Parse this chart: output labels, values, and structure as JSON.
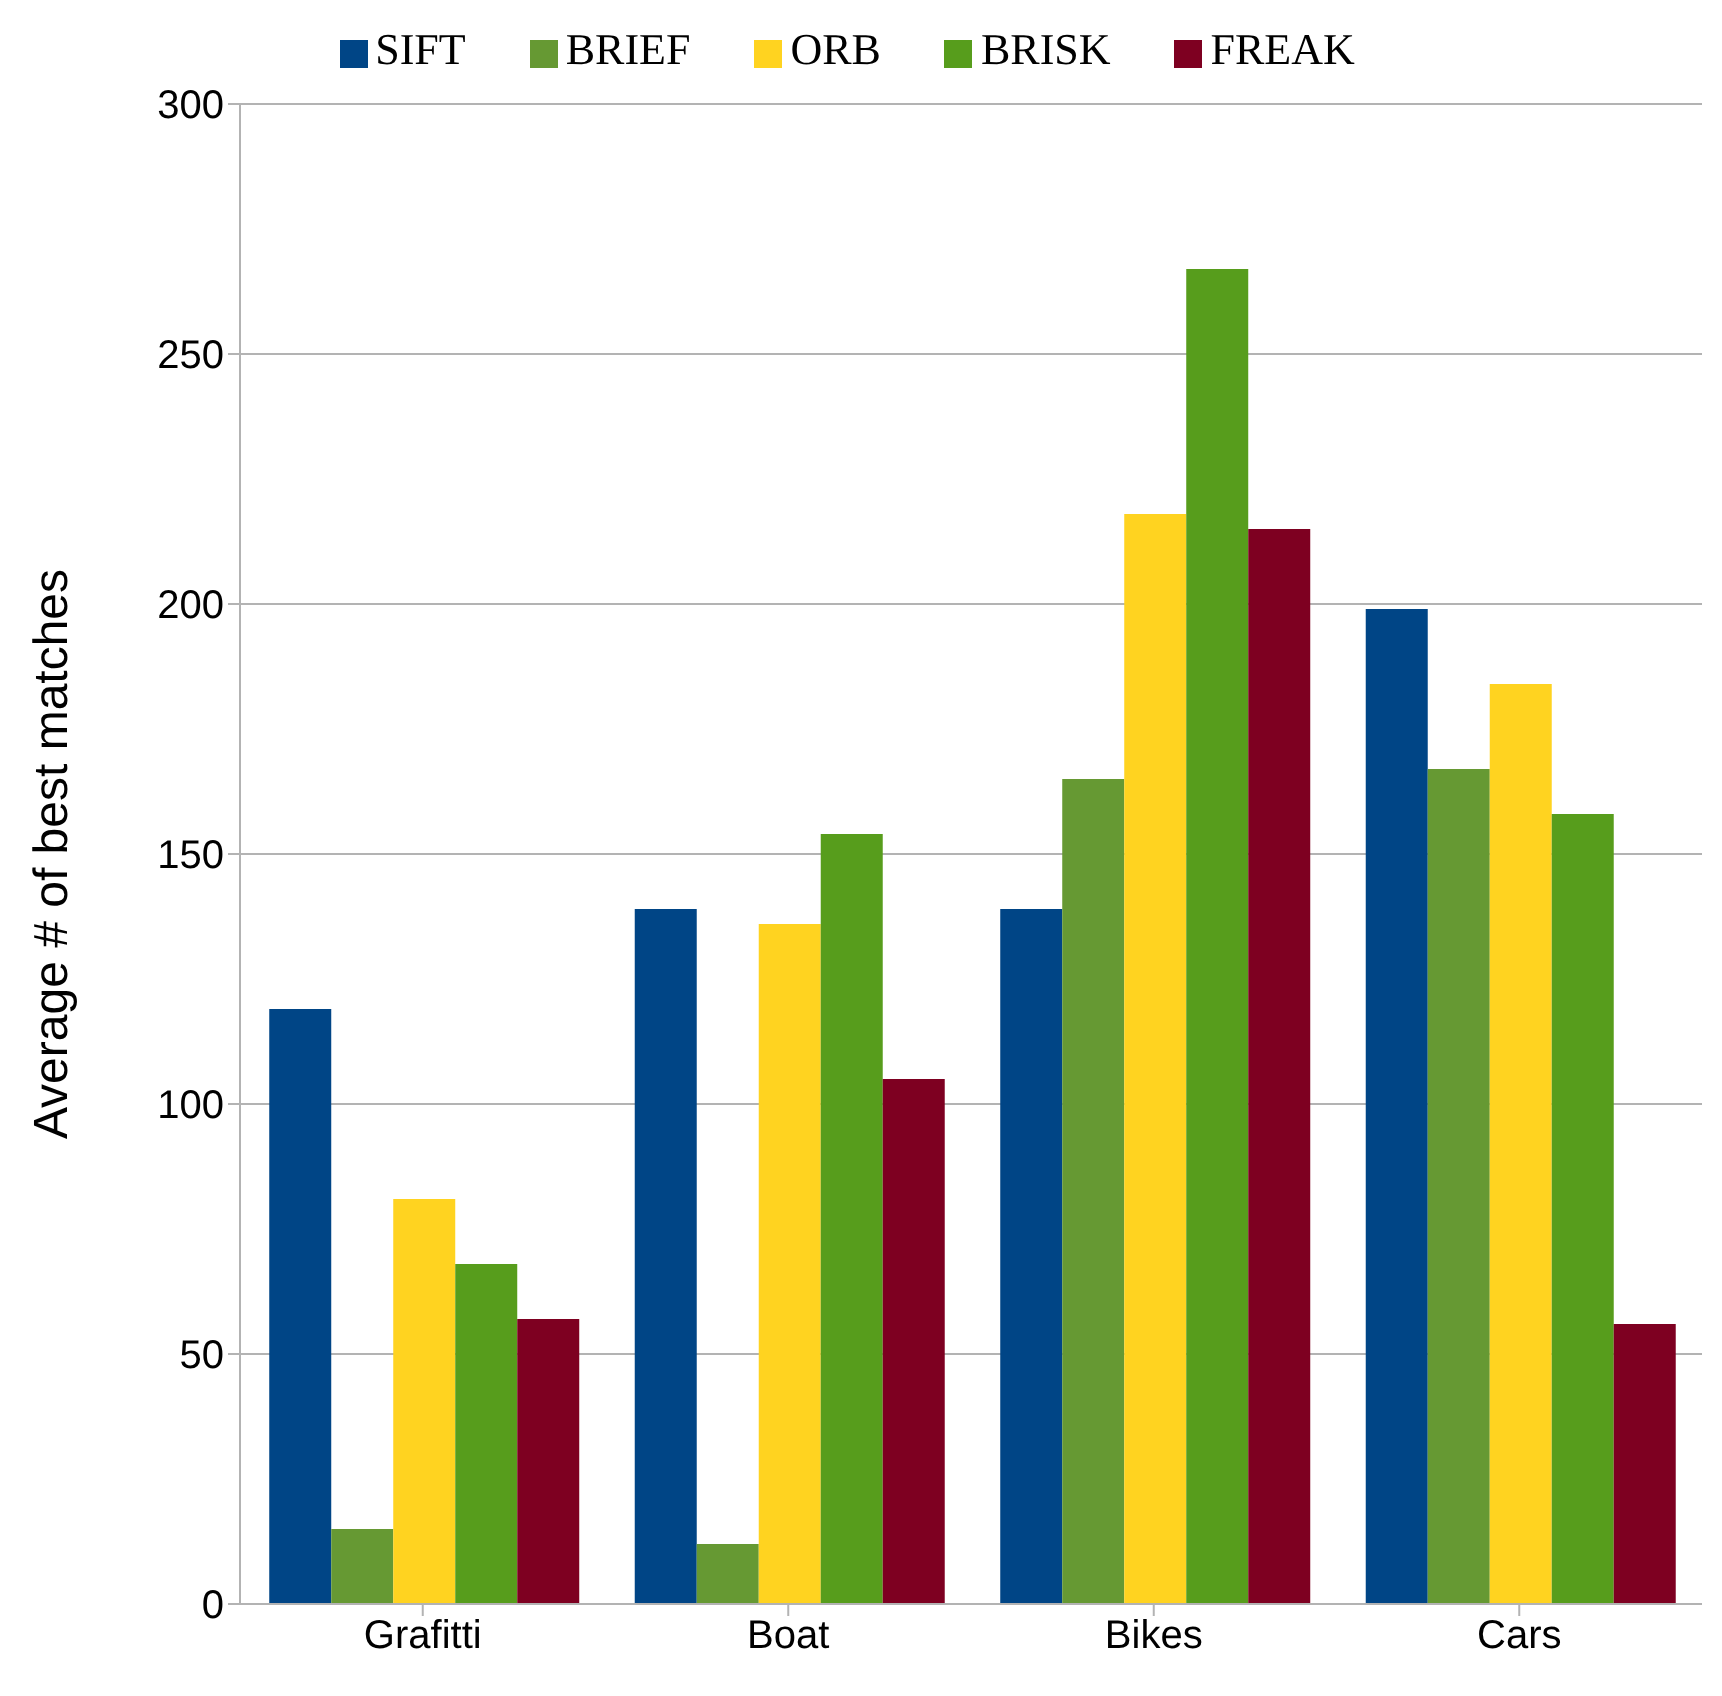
{
  "chart_data": {
    "type": "bar",
    "ylabel": "Average # of best matches",
    "categories": [
      "Grafitti",
      "Boat",
      "Bikes",
      "Cars"
    ],
    "series": [
      {
        "name": "SIFT",
        "color": "#004586",
        "values": [
          119,
          139,
          139,
          199
        ]
      },
      {
        "name": "BRIEF",
        "color": "#669933",
        "values": [
          15,
          12,
          165,
          167
        ]
      },
      {
        "name": "ORB",
        "color": "#ffd320",
        "values": [
          81,
          136,
          218,
          184
        ]
      },
      {
        "name": "BRISK",
        "color": "#579d1c",
        "values": [
          68,
          154,
          267,
          158
        ]
      },
      {
        "name": "FREAK",
        "color": "#7e0021",
        "values": [
          57,
          105,
          215,
          56
        ]
      }
    ],
    "ylim": [
      0,
      300
    ],
    "yticks": [
      0,
      50,
      100,
      150,
      200,
      250,
      300
    ],
    "grid": "y",
    "legend": "top"
  }
}
